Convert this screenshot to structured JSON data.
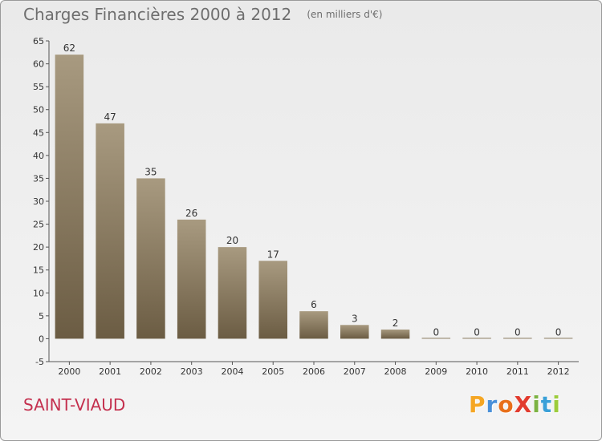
{
  "chart_data": {
    "type": "bar",
    "title": "Charges Financières 2000 à 2012",
    "subtitle": "(en milliers d'€)",
    "categories": [
      "2000",
      "2001",
      "2002",
      "2003",
      "2004",
      "2005",
      "2006",
      "2007",
      "2008",
      "2009",
      "2010",
      "2011",
      "2012"
    ],
    "values": [
      62,
      47,
      35,
      26,
      20,
      17,
      6,
      3,
      2,
      0,
      0,
      0,
      0
    ],
    "ylim": [
      -5,
      65
    ],
    "yticks": [
      -5,
      0,
      5,
      10,
      15,
      20,
      25,
      30,
      35,
      40,
      45,
      50,
      55,
      60,
      65
    ],
    "grid": false,
    "bar_color": "#8a7a5f"
  },
  "footer": {
    "commune": "SAINT-VIAUD",
    "logo_letters": [
      {
        "char": "P",
        "color": "#f5a623"
      },
      {
        "char": "r",
        "color": "#4a90d9"
      },
      {
        "char": "o",
        "color": "#e86f1a"
      },
      {
        "char": "X",
        "color": "#e23b2e"
      },
      {
        "char": "i",
        "color": "#7cb342"
      },
      {
        "char": "t",
        "color": "#3aa0d8"
      },
      {
        "char": "i",
        "color": "#9ccc3c"
      }
    ]
  },
  "colors": {
    "accent": "#c4304e",
    "text": "#6e6e6e"
  }
}
